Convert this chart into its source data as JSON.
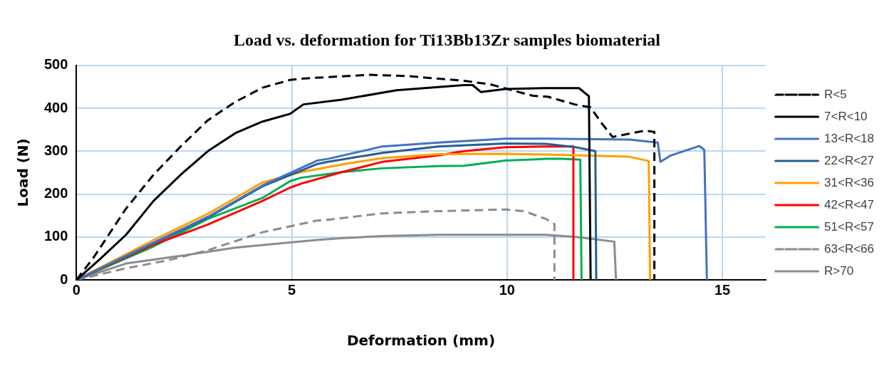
{
  "chart_data": {
    "type": "line",
    "title": "Load vs. deformation for Ti13Bb13Zr samples biomaterial",
    "xlabel": "Deformation (mm)",
    "ylabel": "Load (N)",
    "xlim": [
      0,
      16
    ],
    "xticks": [
      0,
      5,
      10,
      15
    ],
    "ylim": [
      0,
      500
    ],
    "yticks": [
      0,
      100,
      200,
      300,
      400,
      500
    ],
    "grid": true,
    "legend": "right",
    "marker": "none",
    "series": [
      {
        "name": "R<5",
        "color": "#000000",
        "line_style": "dashed",
        "x": [
          0,
          0.39,
          1.15,
          1.79,
          2.42,
          3.05,
          3.69,
          4.32,
          4.96,
          5.21,
          6.8,
          7.7,
          9.0,
          9.6,
          10.6,
          10.94,
          11.57,
          11.94,
          12.19,
          12.45,
          13.2,
          13.42,
          13.42
        ],
        "values": [
          0,
          51,
          166,
          245,
          311,
          372,
          415,
          448,
          466,
          469,
          478,
          475,
          464,
          456,
          429,
          427,
          409,
          402,
          366,
          333,
          348,
          345,
          0
        ]
      },
      {
        "name": "7<R<10",
        "color": "#000000",
        "line_style": "solid",
        "x": [
          0,
          0.51,
          1.15,
          1.79,
          2.42,
          3.05,
          3.69,
          4.32,
          4.96,
          5.27,
          6.16,
          7.43,
          9.0,
          9.2,
          9.39,
          9.96,
          10.9,
          11.67,
          11.9,
          11.94
        ],
        "values": [
          0,
          45,
          105,
          184,
          245,
          300,
          342,
          369,
          387,
          409,
          420,
          442,
          454,
          454,
          438,
          445,
          447,
          447,
          428,
          0
        ]
      },
      {
        "name": "13<R<18",
        "color": "#4472c4",
        "line_style": "solid",
        "x": [
          0,
          1.79,
          3.05,
          4.32,
          5.59,
          5.84,
          7.1,
          8.4,
          9.96,
          10.94,
          12.84,
          13.5,
          13.56,
          13.8,
          14.46,
          14.58,
          14.64
        ],
        "values": [
          0,
          87,
          147,
          220,
          278,
          282,
          311,
          320,
          329,
          329,
          327,
          320,
          275,
          290,
          312,
          303,
          0
        ]
      },
      {
        "name": "22<R<27",
        "color": "#255e91",
        "line_style": "solid",
        "x": [
          0,
          1.79,
          3.05,
          4.32,
          5.59,
          5.84,
          7.1,
          8.4,
          9.96,
          10.9,
          11.6,
          12.05,
          12.07
        ],
        "values": [
          0,
          85,
          145,
          218,
          270,
          275,
          296,
          311,
          318,
          317,
          309,
          300,
          0
        ]
      },
      {
        "name": "31<R<36",
        "color": "#ffa000",
        "line_style": "solid",
        "x": [
          0,
          1.79,
          3.05,
          4.32,
          5.21,
          6.16,
          7.1,
          8.4,
          9.96,
          10.9,
          12.84,
          13.29,
          13.32
        ],
        "values": [
          0,
          93,
          154,
          227,
          251,
          269,
          284,
          293,
          294,
          292,
          287,
          277,
          0
        ]
      },
      {
        "name": "42<R<47",
        "color": "#ff0000",
        "line_style": "solid",
        "x": [
          0,
          1.79,
          3.05,
          4.32,
          4.96,
          5.21,
          6.16,
          7.1,
          8.4,
          9.0,
          9.96,
          10.9,
          11.54,
          11.54
        ],
        "values": [
          0,
          82,
          129,
          184,
          215,
          224,
          251,
          275,
          290,
          300,
          309,
          311,
          311,
          0
        ]
      },
      {
        "name": "51<R<57",
        "color": "#00b050",
        "line_style": "solid",
        "x": [
          0,
          1.79,
          3.05,
          4.32,
          4.96,
          5.21,
          6.16,
          7.1,
          8.4,
          9.0,
          9.96,
          10.9,
          11.27,
          11.7,
          11.73
        ],
        "values": [
          0,
          78,
          142,
          191,
          230,
          238,
          251,
          260,
          265,
          266,
          278,
          282,
          282,
          280,
          0
        ]
      },
      {
        "name": "63<R<66",
        "color": "#8c8c8c",
        "line_style": "dashed",
        "x": [
          0,
          1.15,
          2.1,
          3.05,
          4.32,
          5.58,
          5.84,
          7.1,
          8.4,
          9.96,
          10.4,
          10.9,
          11.1,
          11.1
        ],
        "values": [
          0,
          27,
          45,
          69,
          111,
          138,
          140,
          155,
          160,
          164,
          160,
          142,
          130,
          0
        ]
      },
      {
        "name": "R>70",
        "color": "#8c8c8c",
        "line_style": "solid",
        "x": [
          0,
          1.15,
          2.42,
          3.69,
          4.96,
          5.58,
          6.16,
          7.1,
          8.4,
          10.9,
          11.6,
          12.49,
          12.53
        ],
        "values": [
          0,
          38,
          56,
          75,
          87,
          93,
          97,
          102,
          105,
          105,
          100,
          89,
          0
        ]
      }
    ]
  }
}
